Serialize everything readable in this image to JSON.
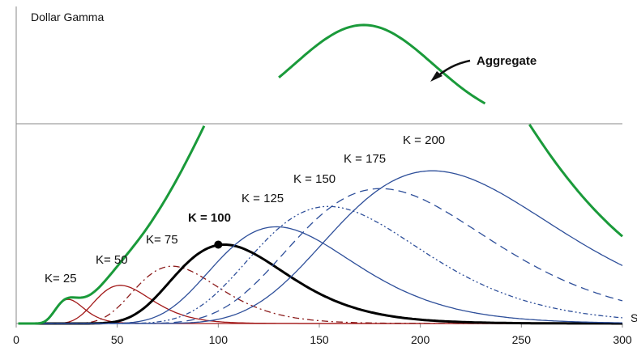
{
  "chart_data": {
    "type": "line",
    "title": "",
    "ylabel": "Dollar Gamma",
    "xlabel": "S",
    "xlim": [
      0,
      300
    ],
    "ylim": [
      0,
      1.57
    ],
    "xticks": [
      0,
      50,
      100,
      150,
      200,
      250,
      300
    ],
    "tick_labels": [
      "0",
      "50",
      "100",
      "150",
      "200",
      "250",
      "300"
    ],
    "grid": false,
    "series": [
      {
        "name": "K= 25",
        "strike": 25,
        "color": "#a31a1a",
        "style": "solid",
        "peak": 0.19,
        "sigma": 0.27
      },
      {
        "name": "K= 50",
        "strike": 50,
        "color": "#a31a1a",
        "style": "solid",
        "peak": 0.3,
        "sigma": 0.27
      },
      {
        "name": "K= 75",
        "strike": 75,
        "color": "#8b1a1a",
        "style": "dashdot",
        "peak": 0.45,
        "sigma": 0.27
      },
      {
        "name": "K = 100",
        "strike": 100,
        "color": "#000000",
        "style": "solid-bold",
        "peak": 0.62,
        "sigma": 0.27
      },
      {
        "name": "K = 125",
        "strike": 125,
        "color": "#2e4f9a",
        "style": "solid",
        "peak": 0.76,
        "sigma": 0.27
      },
      {
        "name": "K = 150",
        "strike": 150,
        "color": "#2e4f9a",
        "style": "dashdotdot",
        "peak": 0.92,
        "sigma": 0.27
      },
      {
        "name": "K = 175",
        "strike": 175,
        "color": "#2e4f9a",
        "style": "dashed",
        "peak": 1.06,
        "sigma": 0.27
      },
      {
        "name": "K = 200",
        "strike": 200,
        "color": "#2e4f9a",
        "style": "solid",
        "peak": 1.2,
        "sigma": 0.27
      }
    ],
    "aggregate": {
      "name": "Aggregate",
      "color": "#1a9a3a",
      "break_y": 1.57,
      "peak": 2.43
    },
    "reference_line_y": 1.57,
    "point": {
      "x": 100,
      "y": 0.62
    }
  }
}
